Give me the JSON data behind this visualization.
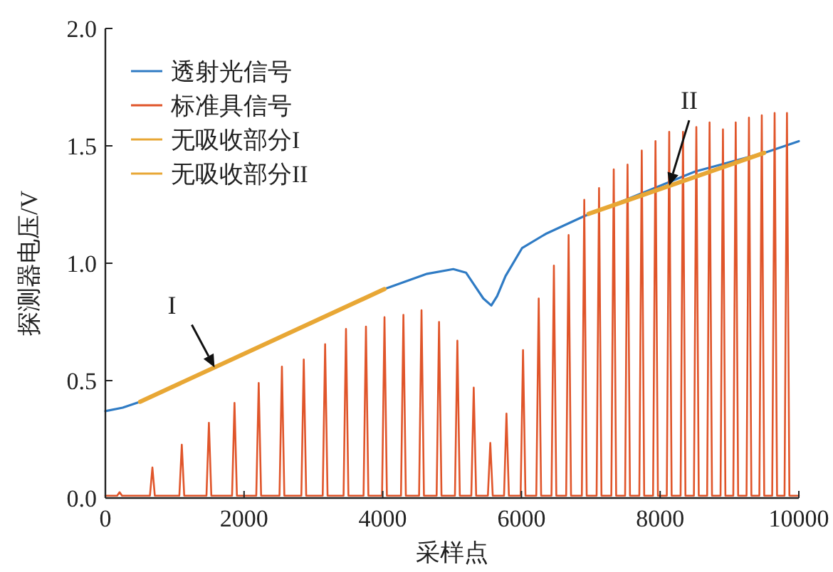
{
  "chart_data": {
    "type": "line",
    "xlabel": "采样点",
    "ylabel": "探测器电压/V",
    "xlim": [
      0,
      10000
    ],
    "xticks": [
      0,
      2000,
      4000,
      6000,
      8000,
      10000
    ],
    "ylim": [
      0,
      2.0
    ],
    "yticks": [
      {
        "value": 0,
        "label": "0.0"
      },
      0.5,
      {
        "value": 1,
        "label": "1.0"
      },
      1.5,
      {
        "value": 2,
        "label": "2.0"
      }
    ],
    "grid": false,
    "legend": "top left",
    "series": [
      {
        "name": "透射光信号",
        "color": "#2f7bc4",
        "x": [
          0,
          250,
          500,
          4025,
          4640,
          5017,
          5200,
          5325,
          5450,
          5565,
          5650,
          5770,
          6010,
          6350,
          6900,
          7500,
          8500,
          9500,
          10000
        ],
        "values": [
          0.37,
          0.385,
          0.41,
          0.89,
          0.955,
          0.975,
          0.96,
          0.905,
          0.85,
          0.82,
          0.86,
          0.945,
          1.065,
          1.125,
          1.2,
          1.27,
          1.39,
          1.47,
          1.52
        ]
      },
      {
        "name": "标准具信号",
        "color": "#e0552a",
        "x": [
          0,
          170,
          205,
          240,
          643,
          678,
          713,
          1067,
          1102,
          1137,
          1458,
          1493,
          1528,
          1827,
          1862,
          1897,
          2176,
          2211,
          2246,
          2511,
          2546,
          2581,
          2826,
          2861,
          2896,
          3134,
          3169,
          3204,
          3435,
          3470,
          3505,
          3723,
          3758,
          3793,
          3990,
          4025,
          4060,
          4263,
          4298,
          4333,
          4524,
          4559,
          4594,
          4777,
          4812,
          4847,
          5041,
          5076,
          5111,
          5277,
          5312,
          5347,
          5516,
          5551,
          5586,
          5749,
          5784,
          5819,
          5988,
          6023,
          6058,
          6214,
          6249,
          6284,
          6433,
          6468,
          6503,
          6645,
          6680,
          6715,
          6871,
          6906,
          6941,
          7084,
          7119,
          7154,
          7296,
          7331,
          7366,
          7495,
          7530,
          7565,
          7700,
          7735,
          7770,
          7898,
          7933,
          7968,
          8096,
          8131,
          8166,
          8295,
          8330,
          8365,
          8487,
          8522,
          8557,
          8678,
          8713,
          8748,
          8871,
          8906,
          8941,
          9055,
          9090,
          9125,
          9246,
          9281,
          9316,
          9431,
          9466,
          9501,
          9616,
          9651,
          9686,
          9794,
          9829,
          9864,
          10000
        ],
        "values": [
          0.01,
          0.01,
          0.025,
          0.01,
          0.01,
          0.13,
          0.01,
          0.01,
          0.227,
          0.01,
          0.01,
          0.32,
          0.01,
          0.01,
          0.405,
          0.01,
          0.01,
          0.49,
          0.01,
          0.01,
          0.56,
          0.01,
          0.01,
          0.59,
          0.01,
          0.01,
          0.655,
          0.01,
          0.01,
          0.72,
          0.01,
          0.01,
          0.73,
          0.01,
          0.01,
          0.77,
          0.01,
          0.01,
          0.78,
          0.01,
          0.01,
          0.8,
          0.01,
          0.01,
          0.75,
          0.01,
          0.01,
          0.67,
          0.01,
          0.01,
          0.47,
          0.01,
          0.01,
          0.235,
          0.01,
          0.01,
          0.36,
          0.01,
          0.01,
          0.63,
          0.01,
          0.01,
          0.85,
          0.01,
          0.01,
          0.99,
          0.01,
          0.01,
          1.12,
          0.01,
          0.01,
          1.27,
          0.01,
          0.01,
          1.32,
          0.01,
          0.01,
          1.4,
          0.01,
          0.01,
          1.42,
          0.01,
          0.01,
          1.48,
          0.01,
          0.01,
          1.52,
          0.01,
          0.01,
          1.56,
          0.01,
          0.01,
          1.56,
          0.01,
          0.01,
          1.58,
          0.01,
          0.01,
          1.6,
          0.01,
          0.01,
          1.57,
          0.01,
          0.01,
          1.6,
          0.01,
          0.01,
          1.62,
          0.01,
          0.01,
          1.63,
          0.01,
          0.01,
          1.64,
          0.01,
          0.01,
          1.64,
          0.01,
          0.01
        ]
      },
      {
        "name": "无吸收部分I",
        "color": "#e8a735",
        "x": [
          500,
          4025
        ],
        "values": [
          0.41,
          0.89
        ]
      },
      {
        "name": "无吸收部分II",
        "color": "#e8a735",
        "x": [
          6967,
          9500
        ],
        "values": [
          1.21,
          1.47
        ]
      }
    ],
    "annotations": [
      {
        "text": "I",
        "x": 1575,
        "y": 0.556
      },
      {
        "text": "II",
        "x": 8131,
        "y": 1.33
      }
    ]
  }
}
